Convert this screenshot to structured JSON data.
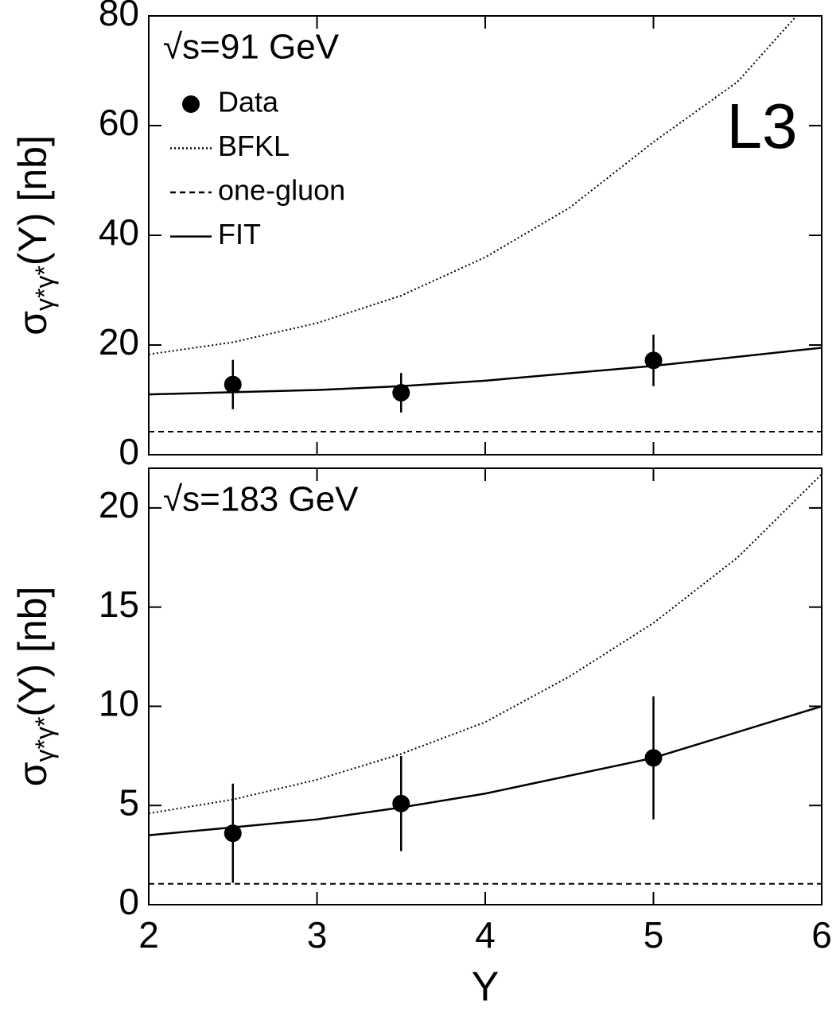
{
  "chart_data": [
    {
      "type": "line",
      "annotation": "√s=91 GeV",
      "label": "L3",
      "ylabel": {
        "main": "σ",
        "sub": "γ*γ*",
        "rest": "(Y) [nb]"
      },
      "xlim": [
        2,
        6
      ],
      "ylim": [
        0,
        80
      ],
      "yticks": [
        0,
        20,
        40,
        60,
        80
      ],
      "series": [
        {
          "name": "Data",
          "style": "points",
          "color": "#000000",
          "x": [
            2.5,
            3.5,
            5
          ],
          "values": [
            12.8,
            11.3,
            17.2
          ],
          "errors": [
            4.5,
            3.6,
            4.7
          ]
        },
        {
          "name": "BFKL",
          "style": "dotted",
          "color": "#000000",
          "x": [
            2,
            2.5,
            3,
            3.5,
            4,
            4.5,
            5,
            5.5,
            5.85
          ],
          "values": [
            18.3,
            20.5,
            24,
            29,
            36,
            45,
            57,
            68,
            80
          ]
        },
        {
          "name": "one-gluon",
          "style": "dashed",
          "color": "#000000",
          "x": [
            2,
            6
          ],
          "values": [
            4.2,
            4.2
          ]
        },
        {
          "name": "FIT",
          "style": "solid",
          "color": "#000000",
          "x": [
            2,
            3,
            3.5,
            4,
            5,
            6
          ],
          "values": [
            11,
            11.8,
            12.5,
            13.5,
            16.2,
            19.5
          ]
        }
      ]
    },
    {
      "type": "line",
      "annotation": "√s=183 GeV",
      "ylabel": {
        "main": "σ",
        "sub": "γ*γ*",
        "rest": "(Y) [nb]"
      },
      "xlabel": "Y",
      "xlim": [
        2,
        6
      ],
      "ylim": [
        0,
        22
      ],
      "yticks": [
        0,
        5,
        10,
        15,
        20
      ],
      "xticks": [
        2,
        3,
        4,
        5,
        6
      ],
      "series": [
        {
          "style": "points",
          "color": "#000000",
          "x": [
            2.5,
            3.5,
            5
          ],
          "values": [
            3.6,
            5.1,
            7.4
          ],
          "errors": [
            2.5,
            2.4,
            3.1
          ]
        },
        {
          "style": "dotted",
          "color": "#000000",
          "x": [
            2,
            2.5,
            3,
            3.5,
            4,
            4.5,
            5,
            5.5,
            6
          ],
          "values": [
            4.6,
            5.3,
            6.3,
            7.6,
            9.2,
            11.5,
            14.2,
            17.5,
            21.7
          ]
        },
        {
          "style": "dashed",
          "color": "#000000",
          "x": [
            2,
            6
          ],
          "values": [
            1.05,
            1.05
          ]
        },
        {
          "style": "solid",
          "color": "#000000",
          "x": [
            2,
            3,
            3.5,
            4,
            5,
            6
          ],
          "values": [
            3.5,
            4.3,
            4.9,
            5.6,
            7.4,
            10
          ]
        }
      ]
    }
  ]
}
